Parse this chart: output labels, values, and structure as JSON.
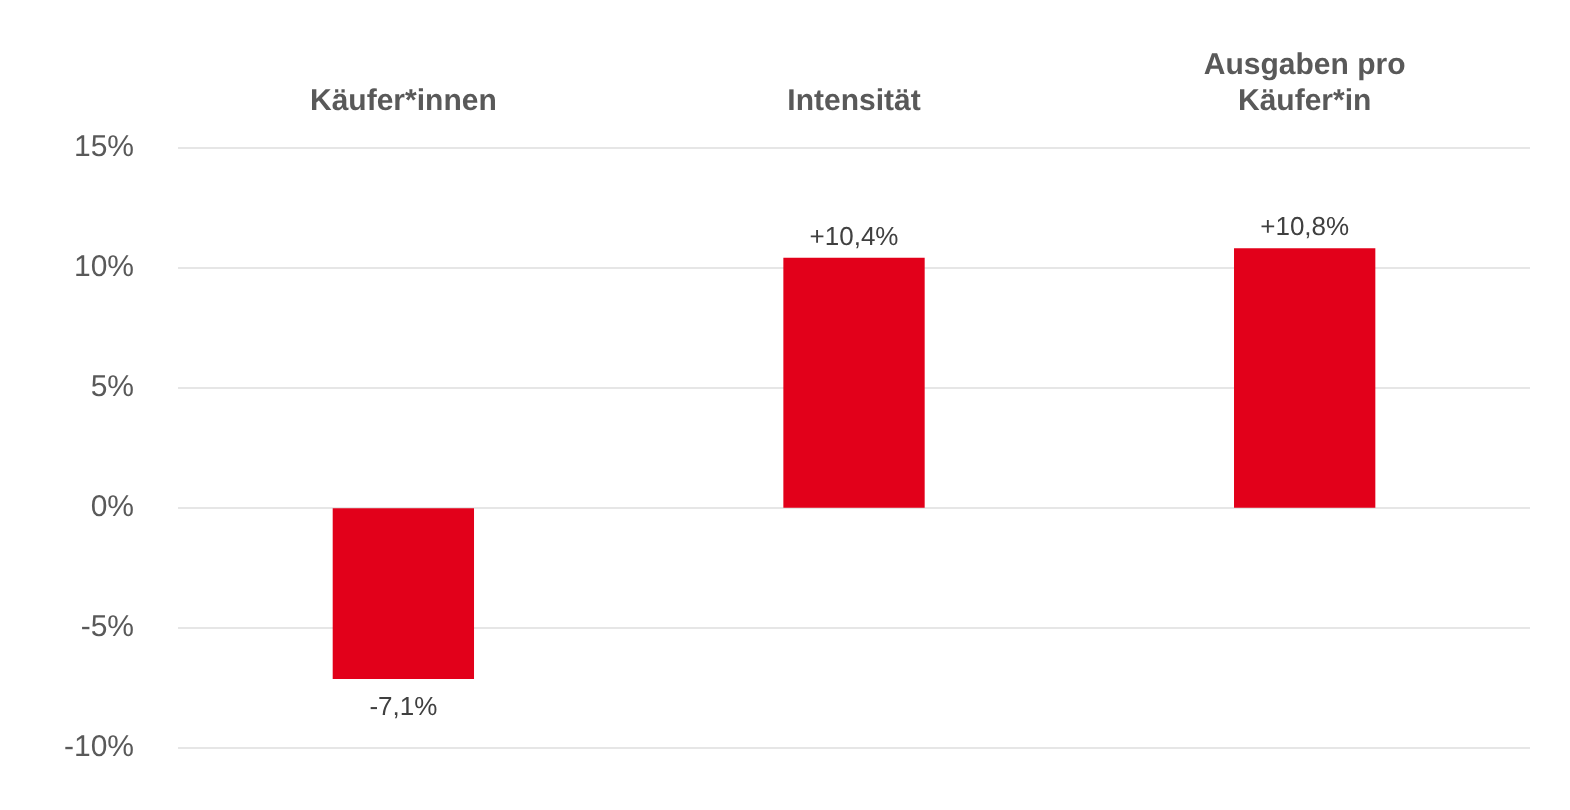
{
  "chart_data": {
    "type": "bar",
    "categories": [
      "Käufer*innen",
      "Intensität",
      "Ausgaben pro Käufer*in"
    ],
    "values": [
      -7.1,
      10.4,
      10.8
    ],
    "color": "#e2001a",
    "value_labels": [
      "-7,1%",
      "+10,4%",
      "+10,8%"
    ],
    "ylim": [
      -10,
      15
    ],
    "yticks": [
      {
        "value": -10,
        "label": "-10%"
      },
      {
        "value": -5,
        "label": "-5%"
      },
      {
        "value": 0,
        "label": "0%"
      },
      {
        "value": 5,
        "label": "5%"
      },
      {
        "value": 10,
        "label": "10%"
      },
      {
        "value": 15,
        "label": "15%"
      }
    ],
    "grid": "y",
    "legend": false
  }
}
